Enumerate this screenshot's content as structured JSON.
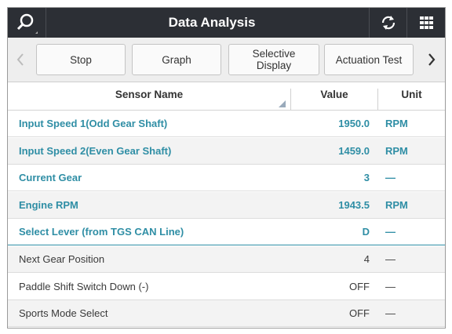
{
  "header": {
    "title": "Data Analysis"
  },
  "toolbar": {
    "buttons": [
      "Stop",
      "Graph",
      "Selective Display",
      "Actuation Test"
    ]
  },
  "table": {
    "columns": [
      "Sensor Name",
      "Value",
      "Unit"
    ],
    "rows": [
      [
        "Input Speed 1(Odd Gear Shaft)",
        "1950.0",
        "RPM"
      ],
      [
        "Input Speed 2(Even Gear Shaft)",
        "1459.0",
        "RPM"
      ],
      [
        "Current Gear",
        "3",
        "—"
      ],
      [
        "Engine RPM",
        "1943.5",
        "RPM"
      ],
      [
        "Select Lever (from TGS CAN Line)",
        "D",
        "—"
      ],
      [
        "Next Gear Position",
        "4",
        "—"
      ],
      [
        "Paddle Shift Switch Down (-)",
        "OFF",
        "—"
      ],
      [
        "Sports Mode Select",
        "OFF",
        "—"
      ]
    ]
  }
}
